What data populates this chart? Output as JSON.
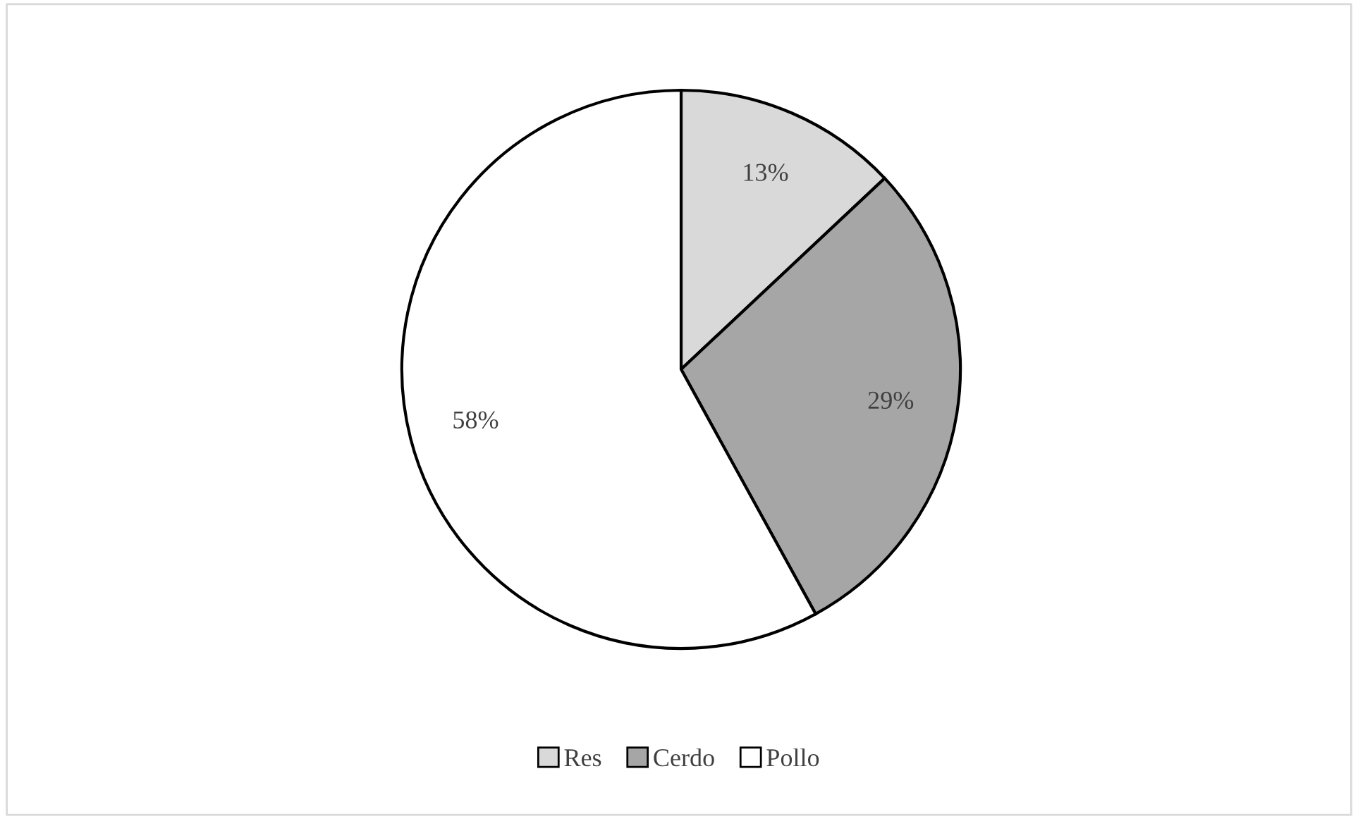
{
  "chart_data": {
    "type": "pie",
    "categories": [
      "Res",
      "Cerdo",
      "Pollo"
    ],
    "values": [
      13,
      29,
      58
    ],
    "colors": [
      "#d9d9d9",
      "#a6a6a6",
      "#ffffff"
    ],
    "value_labels": [
      "13%",
      "29%",
      "58%"
    ],
    "legend": "bottom"
  }
}
